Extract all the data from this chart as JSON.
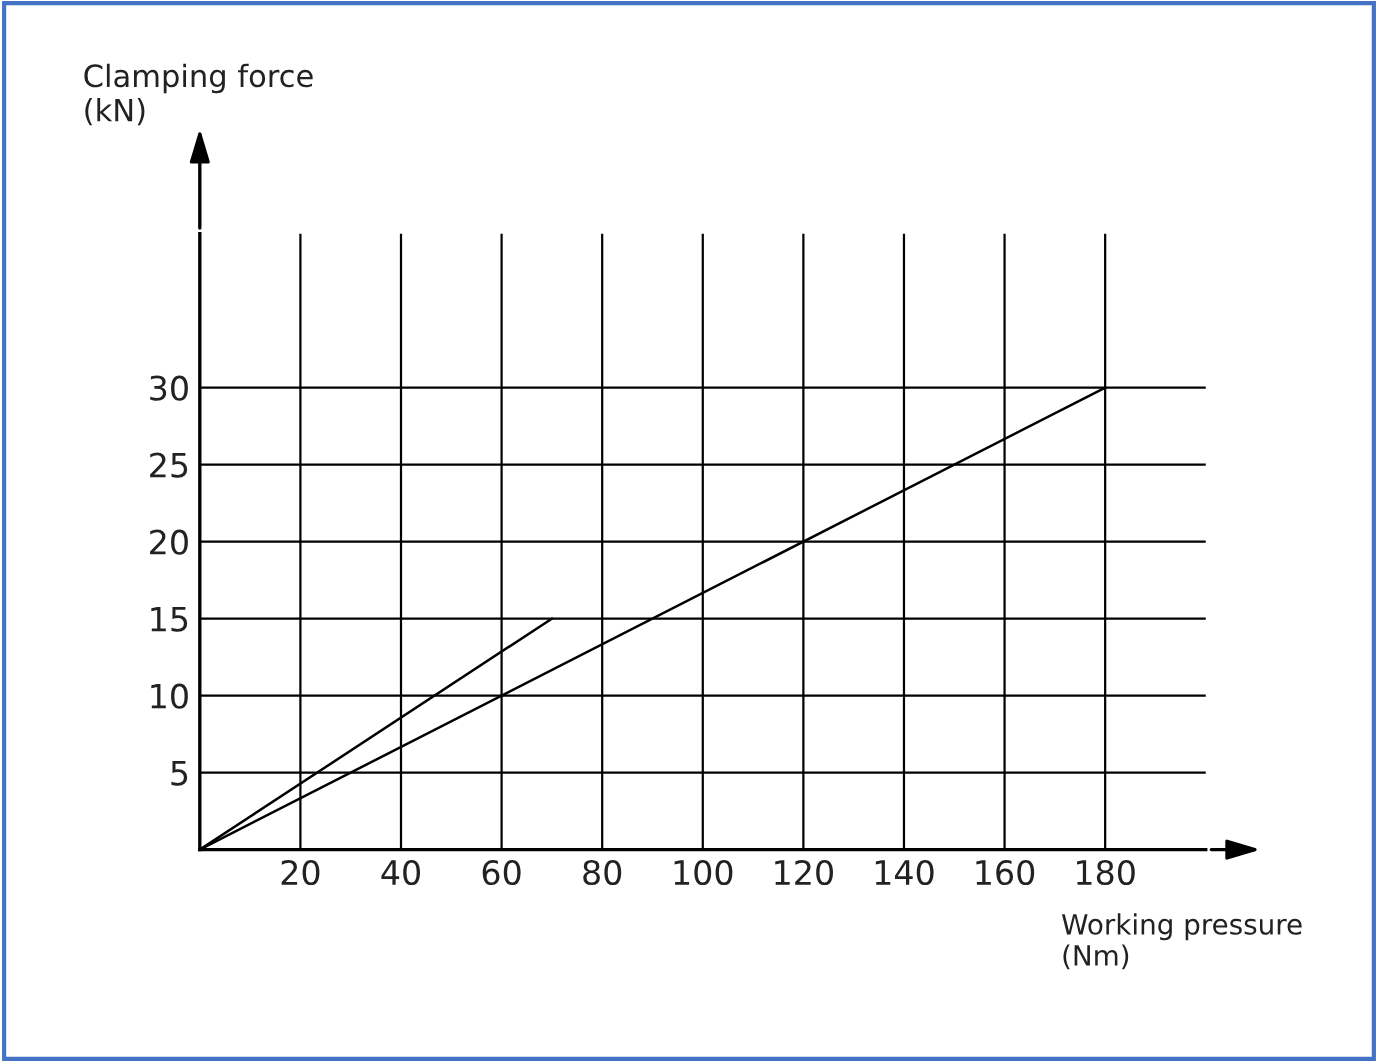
{
  "chart_data": {
    "type": "line",
    "xlabel": "Working pressure\n(Nm)",
    "ylabel": "Clamping force\n(kN)",
    "series": [
      {
        "color": "#000000",
        "x": [
          0,
          70
        ],
        "values": [
          0,
          15
        ]
      },
      {
        "color": "#000000",
        "x": [
          0,
          180
        ],
        "values": [
          0,
          30
        ]
      }
    ],
    "xlim": [
      0,
      200
    ],
    "ylim": [
      0,
      40
    ],
    "xticks": [
      20,
      40,
      60,
      80,
      100,
      120,
      140,
      160,
      180
    ],
    "yticks": [
      5,
      10,
      15,
      20,
      25,
      30
    ],
    "grid": true,
    "legend": false,
    "marker": "none",
    "line_style": "solid"
  }
}
